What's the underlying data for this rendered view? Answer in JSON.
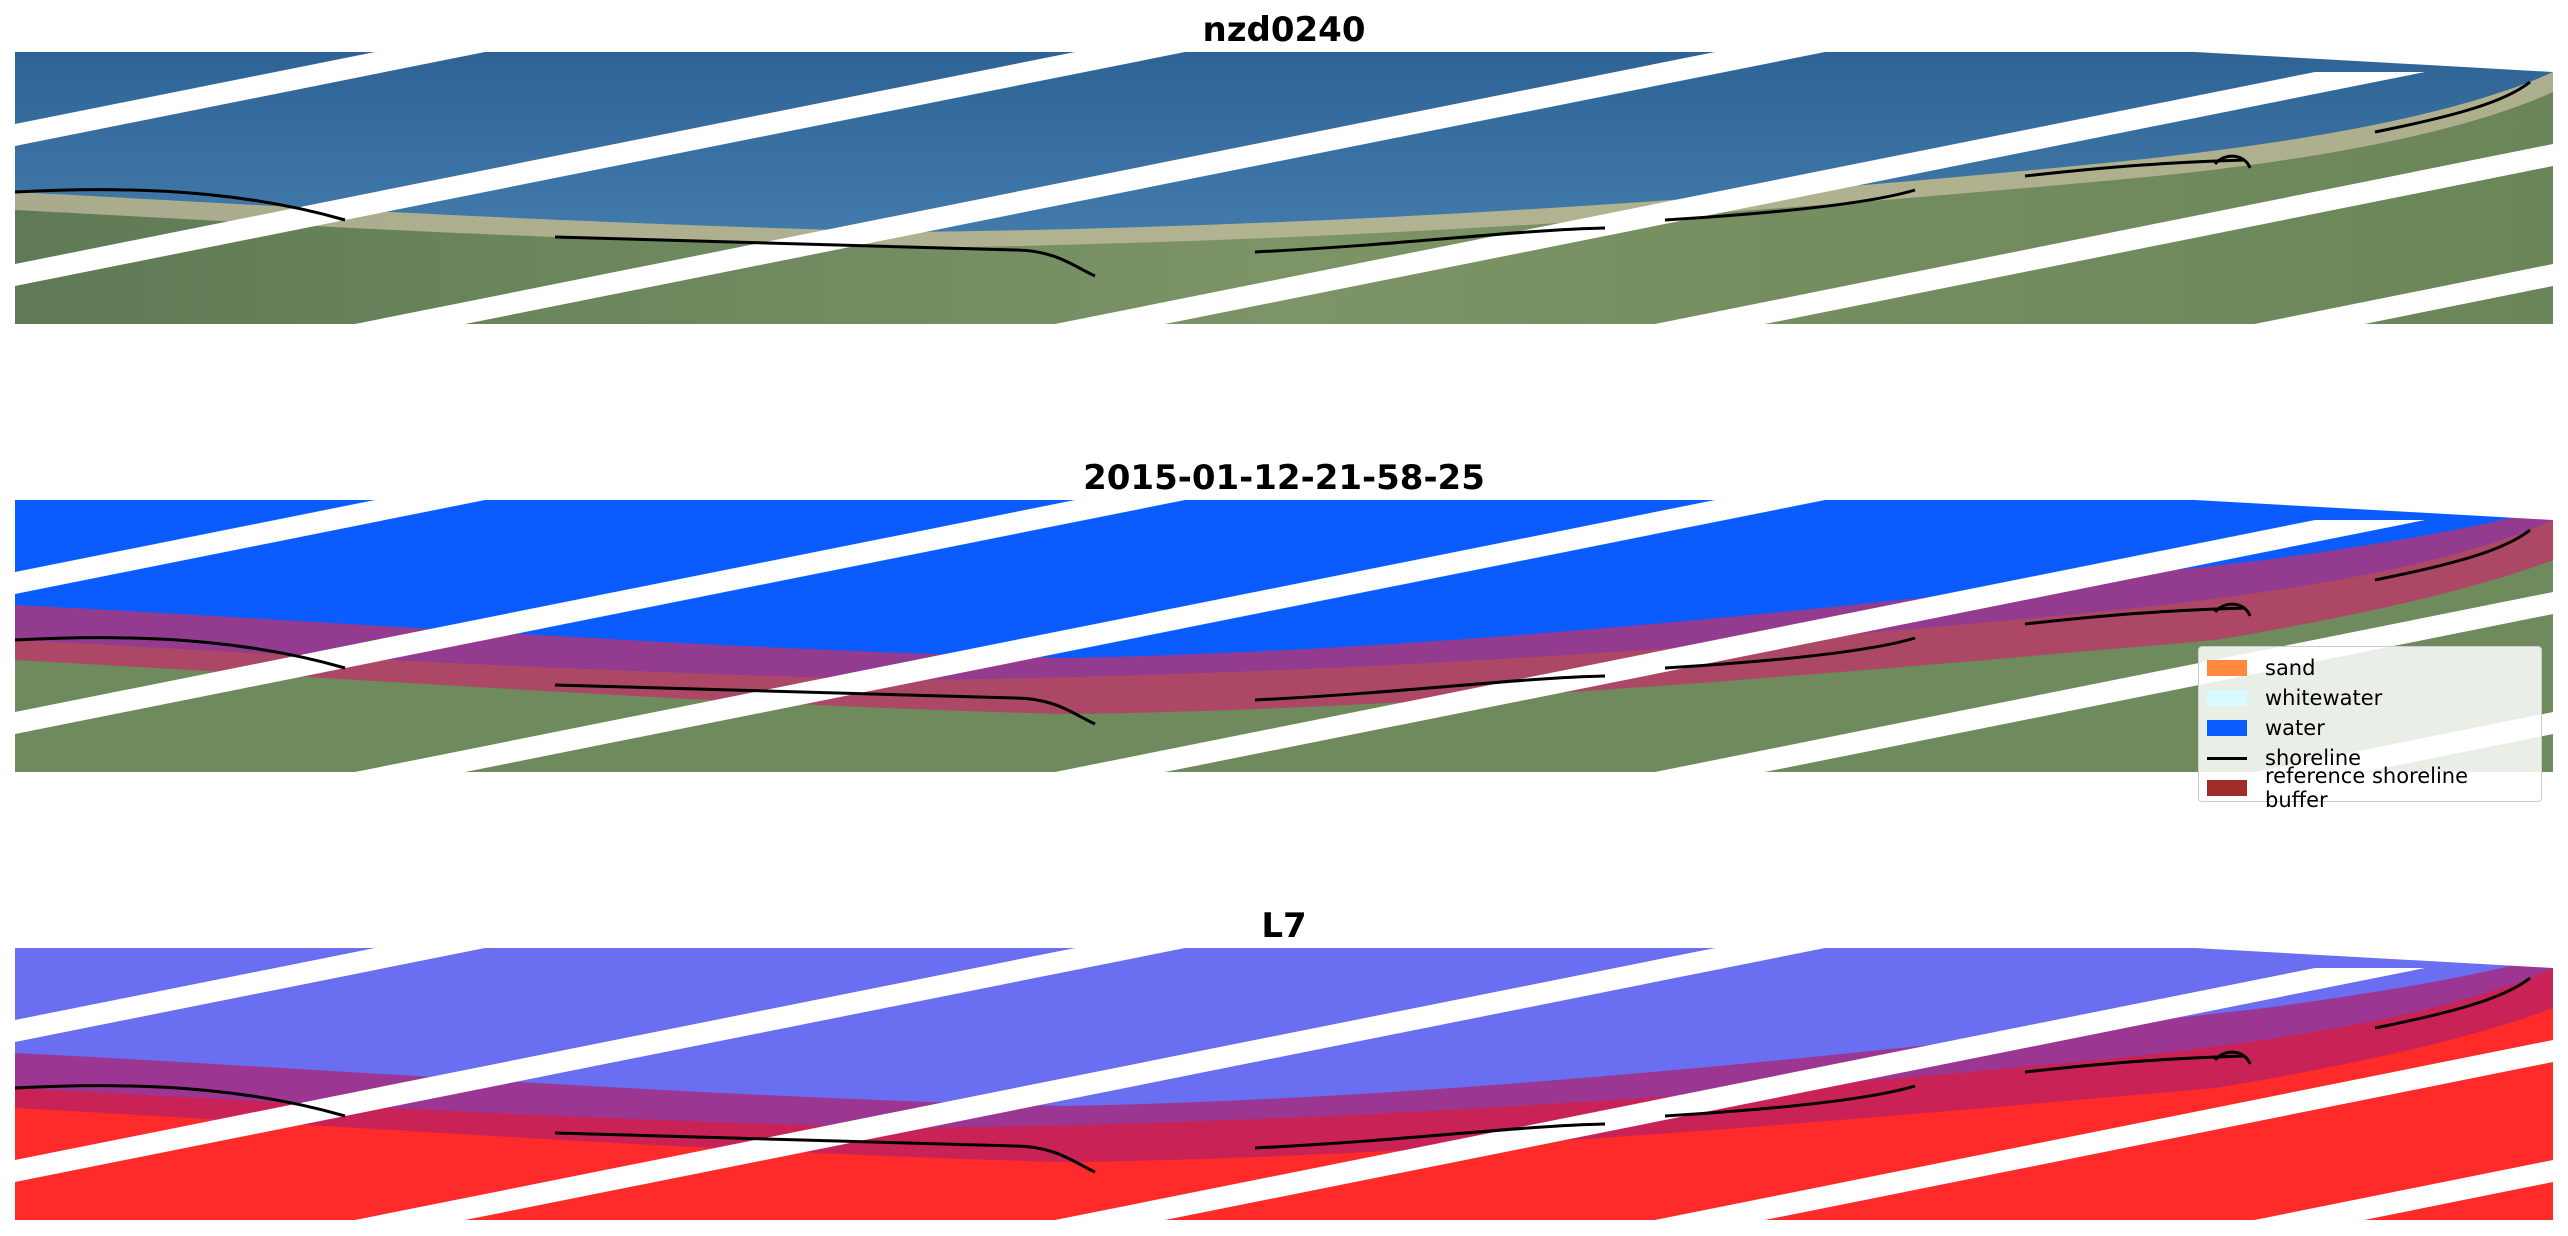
{
  "panels": [
    {
      "title": "nzd0240"
    },
    {
      "title": "2015-01-12-21-58-25"
    },
    {
      "title": "L7"
    }
  ],
  "legend": {
    "items": [
      {
        "label": "sand",
        "kind": "patch",
        "color": "#ff8a3d"
      },
      {
        "label": "whitewater",
        "kind": "patch",
        "color": "#d8fbff"
      },
      {
        "label": "water",
        "kind": "patch",
        "color": "#0a5cff"
      },
      {
        "label": "shoreline",
        "kind": "line",
        "color": "#000000"
      },
      {
        "label": "reference shoreline buffer",
        "kind": "patch",
        "color": "#a02c2c"
      }
    ]
  },
  "colors": {
    "sea_rgb": "#3a6ea0",
    "land_rgb": "#6f8a5c",
    "water_class": "#0a5cff",
    "buffer": "#c0306a",
    "index_water": "#6a6ef0",
    "index_land": "#ff2a2a"
  }
}
